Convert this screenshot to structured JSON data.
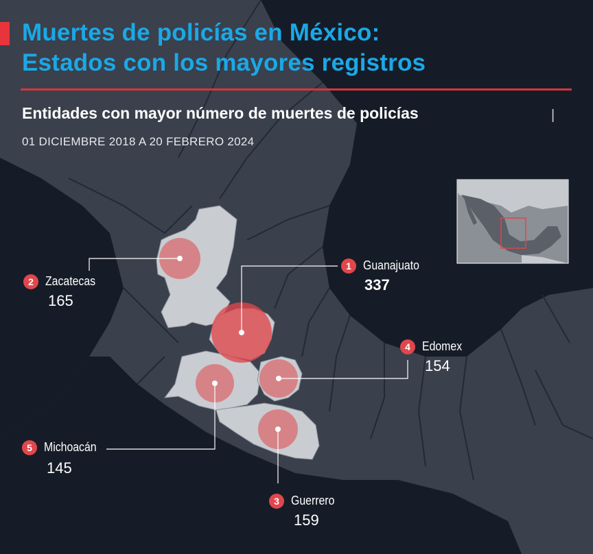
{
  "title": {
    "line1": "Muertes de policías en México:",
    "line2": "Estados con los mayores registros"
  },
  "subtitle": "Entidades con mayor número de muertes de policías",
  "subtitle_separator": "|",
  "date_range": "01 DICIEMBRE 2018 A 20 FEBRERO 2024",
  "colors": {
    "background": "#161c27",
    "map_fill": "#3a404c",
    "state_borders": "#232a35",
    "highlight_fill": "#c9ccd1",
    "bubble": "#e0474c",
    "badge": "#e0474c",
    "title": "#1ba8e6",
    "accent": "#e8353c"
  },
  "entities": [
    {
      "rank": "1",
      "name": "Guanajuato",
      "value": "337"
    },
    {
      "rank": "2",
      "name": "Zacatecas",
      "value": "165"
    },
    {
      "rank": "3",
      "name": "Guerrero",
      "value": "159"
    },
    {
      "rank": "4",
      "name": "Edomex",
      "value": "154"
    },
    {
      "rank": "5",
      "name": "Michoacán",
      "value": "145"
    }
  ],
  "inset": {
    "description_icon": "mexico-locator-map-icon"
  }
}
